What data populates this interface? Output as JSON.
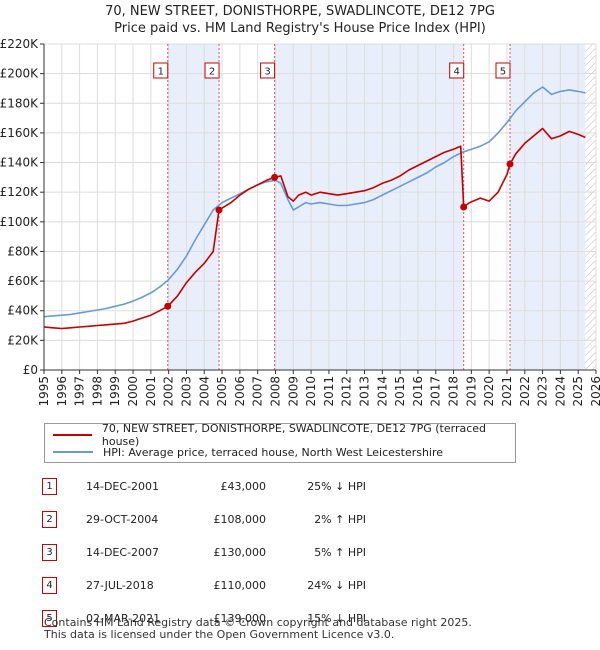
{
  "chart_data": {
    "type": "line",
    "title": "70, NEW STREET, DONISTHORPE, SWADLINCOTE, DE12 7PG",
    "subtitle": "Price paid vs. HM Land Registry's House Price Index (HPI)",
    "xlim": [
      1995,
      2026
    ],
    "ylim": [
      0,
      220000
    ],
    "x_ticks": [
      1995,
      1996,
      1997,
      1998,
      1999,
      2000,
      2001,
      2002,
      2003,
      2004,
      2005,
      2006,
      2007,
      2008,
      2009,
      2010,
      2011,
      2012,
      2013,
      2014,
      2015,
      2016,
      2017,
      2018,
      2019,
      2020,
      2021,
      2022,
      2023,
      2024,
      2025,
      2026
    ],
    "y_ticks": [
      {
        "value": 0,
        "label": "£0"
      },
      {
        "value": 20000,
        "label": "£20K"
      },
      {
        "value": 40000,
        "label": "£40K"
      },
      {
        "value": 60000,
        "label": "£60K"
      },
      {
        "value": 80000,
        "label": "£80K"
      },
      {
        "value": 100000,
        "label": "£100K"
      },
      {
        "value": 120000,
        "label": "£120K"
      },
      {
        "value": 140000,
        "label": "£140K"
      },
      {
        "value": 160000,
        "label": "£160K"
      },
      {
        "value": 180000,
        "label": "£180K"
      },
      {
        "value": 200000,
        "label": "£200K"
      },
      {
        "value": 220000,
        "label": "£220K"
      }
    ],
    "shaded_periods": [
      [
        2001.95,
        2004.83
      ],
      [
        2007.95,
        2018.57
      ],
      [
        2021.17,
        2025.4
      ]
    ],
    "hatched_from": 2025.4,
    "series": [
      {
        "name": "HPI: Average price, terraced house, North West Leicestershire",
        "color": "#6a9ad4",
        "x": [
          1995,
          1995.5,
          1996,
          1996.5,
          1997,
          1997.5,
          1998,
          1998.5,
          1999,
          1999.5,
          2000,
          2000.5,
          2001,
          2001.5,
          2002,
          2002.5,
          2003,
          2003.5,
          2004,
          2004.5,
          2005,
          2005.5,
          2006,
          2006.5,
          2007,
          2007.5,
          2008,
          2008.3,
          2008.7,
          2009,
          2009.3,
          2009.7,
          2010,
          2010.5,
          2011,
          2011.5,
          2012,
          2012.5,
          2013,
          2013.5,
          2014,
          2014.5,
          2015,
          2015.5,
          2016,
          2016.5,
          2017,
          2017.5,
          2018,
          2018.5,
          2019,
          2019.5,
          2020,
          2020.5,
          2021,
          2021.5,
          2022,
          2022.5,
          2023,
          2023.5,
          2024,
          2024.5,
          2025,
          2025.4
        ],
        "values": [
          36000,
          36500,
          37000,
          37500,
          38500,
          39500,
          40500,
          41500,
          43000,
          44500,
          46500,
          49000,
          52000,
          56000,
          61000,
          68000,
          77000,
          88000,
          98000,
          108000,
          113000,
          116000,
          119000,
          122000,
          125000,
          127000,
          128000,
          126000,
          115000,
          108000,
          110000,
          113000,
          112000,
          113000,
          112000,
          111000,
          111000,
          112000,
          113000,
          115000,
          118000,
          121000,
          124000,
          127000,
          130000,
          133000,
          137000,
          140000,
          144000,
          147000,
          149000,
          151000,
          154000,
          160000,
          167000,
          175000,
          181000,
          187000,
          191000,
          186000,
          188000,
          189000,
          188000,
          187000
        ]
      },
      {
        "name": "70, NEW STREET, DONISTHORPE, SWADLINCOTE, DE12 7PG (terraced house)",
        "color": "#c40000",
        "x": [
          1995,
          1995.5,
          1996,
          1996.5,
          1997,
          1997.5,
          1998,
          1998.5,
          1999,
          1999.5,
          2000,
          2000.5,
          2001,
          2001.5,
          2001.95,
          2002.5,
          2003,
          2003.5,
          2004,
          2004.5,
          2004.83,
          2005.5,
          2006,
          2006.5,
          2007,
          2007.5,
          2007.95,
          2008.3,
          2008.7,
          2009,
          2009.3,
          2009.7,
          2010,
          2010.5,
          2011,
          2011.5,
          2012,
          2012.5,
          2013,
          2013.5,
          2014,
          2014.5,
          2015,
          2015.5,
          2016,
          2016.5,
          2017,
          2017.5,
          2018,
          2018.4,
          2018.57,
          2018.9,
          2019.5,
          2020,
          2020.5,
          2021,
          2021.17,
          2021.5,
          2022,
          2022.5,
          2023,
          2023.5,
          2024,
          2024.5,
          2025,
          2025.4
        ],
        "values": [
          29000,
          28500,
          28000,
          28500,
          29000,
          29500,
          30000,
          30500,
          31000,
          31500,
          33000,
          35000,
          37000,
          40000,
          43000,
          50000,
          59000,
          66000,
          72000,
          80000,
          108000,
          113000,
          118000,
          122000,
          125000,
          128000,
          130000,
          131000,
          117000,
          114000,
          118000,
          120000,
          118000,
          120000,
          119000,
          118000,
          119000,
          120000,
          121000,
          123000,
          126000,
          128000,
          131000,
          135000,
          138000,
          141000,
          144000,
          147000,
          149000,
          151000,
          110000,
          113000,
          116000,
          114000,
          120000,
          132000,
          139000,
          146000,
          153000,
          158000,
          163000,
          156000,
          158000,
          161000,
          159000,
          157000
        ]
      }
    ],
    "sales": [
      {
        "label": "1",
        "x": 2001.95,
        "value": 43000
      },
      {
        "label": "2",
        "x": 2004.83,
        "value": 108000
      },
      {
        "label": "3",
        "x": 2007.95,
        "value": 130000
      },
      {
        "label": "4",
        "x": 2018.57,
        "value": 110000
      },
      {
        "label": "5",
        "x": 2021.17,
        "value": 139000
      }
    ]
  },
  "legend": {
    "property_label": "70, NEW STREET, DONISTHORPE, SWADLINCOTE, DE12 7PG (terraced house)",
    "hpi_label": "HPI: Average price, terraced house, North West Leicestershire"
  },
  "transactions": [
    {
      "num": "1",
      "date": "14-DEC-2001",
      "price": "£43,000",
      "hpi": "25% ↓ HPI"
    },
    {
      "num": "2",
      "date": "29-OCT-2004",
      "price": "£108,000",
      "hpi": "2% ↑ HPI"
    },
    {
      "num": "3",
      "date": "14-DEC-2007",
      "price": "£130,000",
      "hpi": "5% ↑ HPI"
    },
    {
      "num": "4",
      "date": "27-JUL-2018",
      "price": "£110,000",
      "hpi": "24% ↓ HPI"
    },
    {
      "num": "5",
      "date": "02-MAR-2021",
      "price": "£139,000",
      "hpi": "15% ↓ HPI"
    }
  ],
  "footer": {
    "line1": "Contains HM Land Registry data © Crown copyright and database right 2025.",
    "line2": "This data is licensed under the Open Government Licence v3.0."
  }
}
